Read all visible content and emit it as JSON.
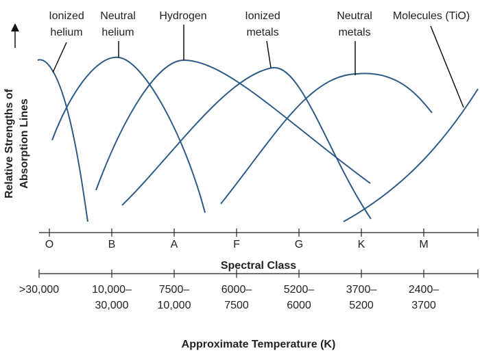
{
  "y_axis_label": [
    "Relative Strengths of",
    "Absorption Lines"
  ],
  "curve_labels": [
    [
      "Ionized",
      "helium"
    ],
    [
      "Neutral",
      "helium"
    ],
    [
      "Hydrogen"
    ],
    [
      "Ionized",
      "metals"
    ],
    [
      "Neutral",
      "metals"
    ],
    [
      "Molecules (TiO)"
    ]
  ],
  "spectral_classes": [
    "O",
    "B",
    "A",
    "F",
    "G",
    "K",
    "M"
  ],
  "x_axis_label": "Spectral Class",
  "temperatures": [
    [
      ">30,000"
    ],
    [
      "10,000–",
      "30,000"
    ],
    [
      "7500–",
      "10,000"
    ],
    [
      "6000–",
      "7500"
    ],
    [
      "5200–",
      "6000"
    ],
    [
      "3700–",
      "5200"
    ],
    [
      "2400–",
      "3700"
    ]
  ],
  "temperature_label": "Approximate Temperature (K)"
}
